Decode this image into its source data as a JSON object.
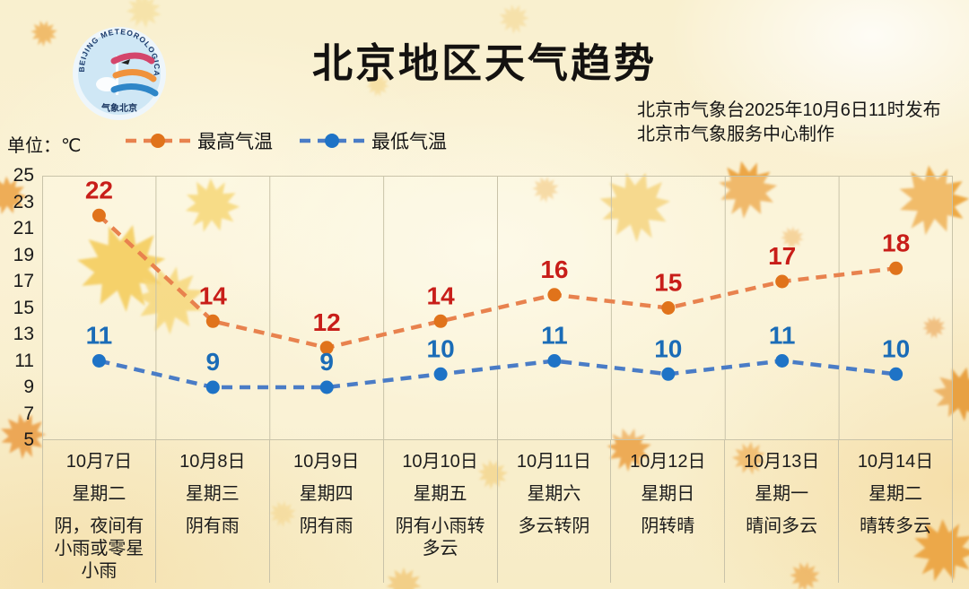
{
  "header": {
    "title": "北京地区天气趋势",
    "issued_line1": "北京市气象台2025年10月6日11时发布",
    "issued_line2": "北京市气象服务中心制作",
    "logo_ring_text": "BEIJING METEOROLOGICAL SERVICE",
    "logo_bottom_text": "气象北京"
  },
  "meta": {
    "unit_label": "单位：℃"
  },
  "legend": {
    "high_label": "最高气温",
    "low_label": "最低气温"
  },
  "chart_data": {
    "type": "line",
    "x": [
      "10月7日",
      "10月8日",
      "10月9日",
      "10月10日",
      "10月11日",
      "10月12日",
      "10月13日",
      "10月14日"
    ],
    "series": [
      {
        "name": "最高气温",
        "values": [
          22,
          14,
          12,
          14,
          16,
          15,
          17,
          18
        ],
        "line_color": "#e8824e",
        "marker_color": "#e0731b",
        "label_color": "#c81e19"
      },
      {
        "name": "最低气温",
        "values": [
          11,
          9,
          9,
          10,
          11,
          10,
          11,
          10
        ],
        "line_color": "#4a7cc6",
        "marker_color": "#1e73c6",
        "label_color": "#1a6cb7"
      }
    ],
    "ylim": [
      5,
      25
    ],
    "yticks": [
      "25",
      "23",
      "21",
      "19",
      "17",
      "15",
      "13",
      "11",
      "9",
      "7",
      "5"
    ],
    "grid": "vertical-only",
    "grid_color": "#c9c3a9",
    "legend_position": "top-left",
    "title": "北京地区天气趋势",
    "ylabel": "单位：℃"
  },
  "table": {
    "days": [
      {
        "date": "10月7日",
        "weekday": "星期二",
        "weather": "阴，夜间有小雨或零星小雨"
      },
      {
        "date": "10月8日",
        "weekday": "星期三",
        "weather": "阴有雨"
      },
      {
        "date": "10月9日",
        "weekday": "星期四",
        "weather": "阴有雨"
      },
      {
        "date": "10月10日",
        "weekday": "星期五",
        "weather": "阴有小雨转多云"
      },
      {
        "date": "10月11日",
        "weekday": "星期六",
        "weather": "多云转阴"
      },
      {
        "date": "10月12日",
        "weekday": "星期日",
        "weather": "阴转晴"
      },
      {
        "date": "10月13日",
        "weekday": "星期一",
        "weather": "晴间多云"
      },
      {
        "date": "10月14日",
        "weekday": "星期二",
        "weather": "晴转多云"
      }
    ]
  }
}
